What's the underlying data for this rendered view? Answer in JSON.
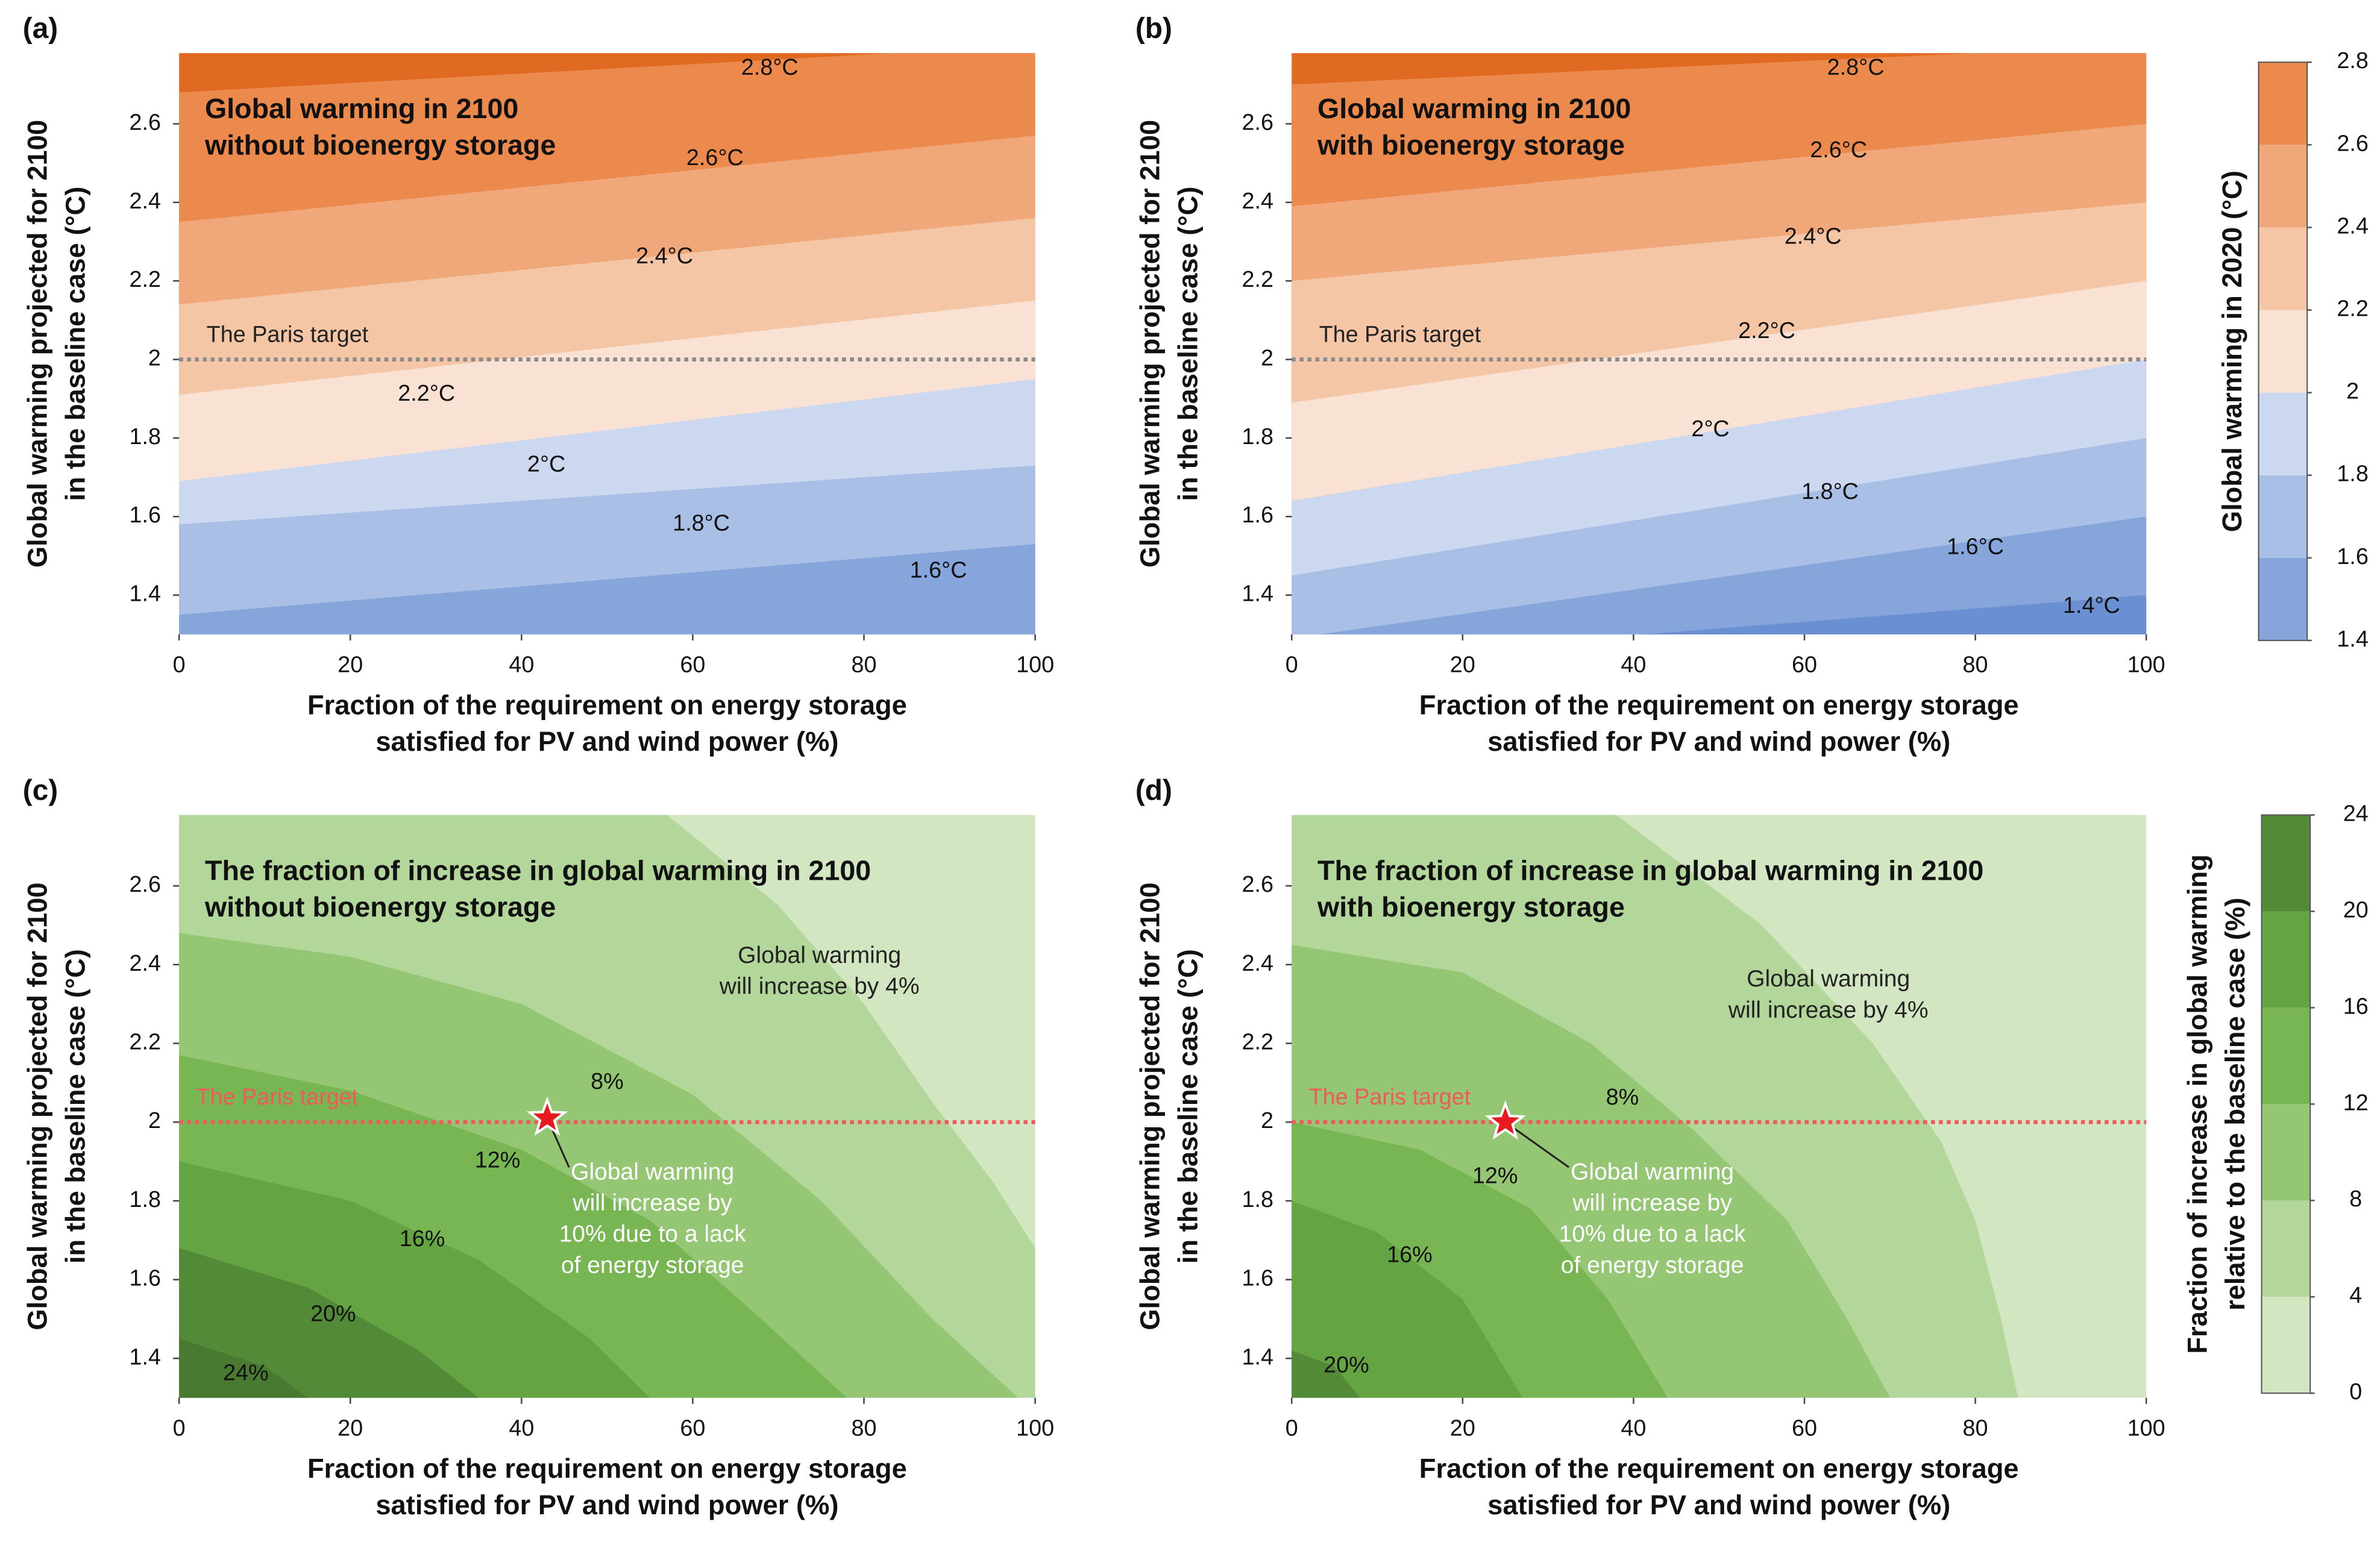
{
  "chart_data": [
    {
      "type": "contour",
      "panel": "(a)",
      "title": [
        "Global warming in 2100",
        "without bioenergy storage"
      ],
      "x_label": [
        "Fraction of the requirement on energy storage",
        "satisfied for PV and wind power (%)"
      ],
      "y_label": [
        "Global warming projected for 2100",
        "in the baseline case (°C)"
      ],
      "xlim": [
        0,
        100
      ],
      "xticks": [
        0,
        20,
        40,
        60,
        80,
        100
      ],
      "ylim": [
        1.3,
        2.78
      ],
      "yticks": [
        1.4,
        1.6,
        1.8,
        2,
        2.2,
        2.4,
        2.6
      ],
      "background": "#e06a22",
      "contours": [
        {
          "label": "2.8°C",
          "color": "#eb8a4c",
          "x": [
            0,
            100
          ],
          "y": [
            2.68,
            2.8
          ]
        },
        {
          "label": "2.6°C",
          "color": "#f0a77a",
          "x": [
            0,
            100
          ],
          "y": [
            2.35,
            2.57
          ]
        },
        {
          "label": "2.4°C",
          "color": "#f5c6a6",
          "x": [
            0,
            100
          ],
          "y": [
            2.14,
            2.36
          ]
        },
        {
          "label": "2.2°C",
          "color": "#f9e2d3",
          "x": [
            0,
            100
          ],
          "y": [
            1.91,
            2.15
          ]
        },
        {
          "label": "2°C",
          "color": "#cbd8ef",
          "x": [
            0,
            100
          ],
          "y": [
            1.69,
            1.95
          ]
        },
        {
          "label": "1.8°C",
          "color": "#a9bfe5",
          "x": [
            0,
            100
          ],
          "y": [
            1.58,
            1.73
          ]
        },
        {
          "label": "1.6°C",
          "color": "#86a5db",
          "x": [
            0,
            100
          ],
          "y": [
            1.35,
            1.53
          ]
        }
      ],
      "reference_line": {
        "label": "The Paris target",
        "value": 2,
        "color": "#8a8a8a"
      }
    },
    {
      "type": "contour",
      "panel": "(b)",
      "title": [
        "Global warming in 2100",
        "with bioenergy storage"
      ],
      "x_label": [
        "Fraction of the requirement on energy storage",
        "satisfied for PV and wind power (%)"
      ],
      "y_label": [
        "Global warming projected for 2100",
        "in the baseline case (°C)"
      ],
      "xlim": [
        0,
        100
      ],
      "xticks": [
        0,
        20,
        40,
        60,
        80,
        100
      ],
      "ylim": [
        1.3,
        2.78
      ],
      "yticks": [
        1.4,
        1.6,
        1.8,
        2,
        2.2,
        2.4,
        2.6
      ],
      "background": "#e06a22",
      "contours": [
        {
          "label": "2.8°C",
          "color": "#eb8a4c",
          "x": [
            0,
            100
          ],
          "y": [
            2.7,
            2.8
          ]
        },
        {
          "label": "2.6°C",
          "color": "#f0a77a",
          "x": [
            0,
            100
          ],
          "y": [
            2.39,
            2.6
          ]
        },
        {
          "label": "2.4°C",
          "color": "#f5c6a6",
          "x": [
            0,
            100
          ],
          "y": [
            2.2,
            2.4
          ]
        },
        {
          "label": "2.2°C",
          "color": "#f9e2d3",
          "x": [
            0,
            100
          ],
          "y": [
            1.89,
            2.2
          ]
        },
        {
          "label": "2°C",
          "color": "#cbd8ef",
          "x": [
            0,
            100
          ],
          "y": [
            1.64,
            2
          ]
        },
        {
          "label": "1.8°C",
          "color": "#a9bfe5",
          "x": [
            0,
            100
          ],
          "y": [
            1.45,
            1.8
          ]
        },
        {
          "label": "1.6°C",
          "color": "#86a5db",
          "x": [
            0,
            100
          ],
          "y": [
            1.29,
            1.6
          ]
        },
        {
          "label": "1.4°C",
          "color": "#6b8fd3",
          "x": [
            0,
            100
          ],
          "y": [
            1.23,
            1.4
          ]
        }
      ],
      "reference_line": {
        "label": "The Paris target",
        "value": 2,
        "color": "#8a8a8a"
      }
    },
    {
      "type": "contour",
      "panel": "(c)",
      "title": [
        "The fraction of increase in global warming in 2100",
        "without bioenergy storage"
      ],
      "x_label": [
        "Fraction of the requirement on energy storage",
        "satisfied for PV and wind power (%)"
      ],
      "y_label": [
        "Global warming projected for 2100",
        "in the baseline case (°C)"
      ],
      "xlim": [
        0,
        100
      ],
      "xticks": [
        0,
        20,
        40,
        60,
        80,
        100
      ],
      "ylim": [
        1.3,
        2.78
      ],
      "yticks": [
        1.4,
        1.6,
        1.8,
        2,
        2.2,
        2.4,
        2.6
      ],
      "background": "#d2e6c2",
      "contours": [
        {
          "color": "#b3d69a",
          "x": [
            57,
            70,
            80,
            88,
            95,
            100
          ],
          "y": [
            2.78,
            2.55,
            2.3,
            2.05,
            1.85,
            1.68
          ]
        },
        {
          "label": "8%",
          "color": "#94c673",
          "x": [
            0,
            20,
            40,
            60,
            75,
            88,
            98
          ],
          "y": [
            2.48,
            2.42,
            2.3,
            2.07,
            1.8,
            1.5,
            1.3
          ]
        },
        {
          "label": "12%",
          "color": "#78b553",
          "x": [
            0,
            20,
            40,
            55,
            68,
            78
          ],
          "y": [
            2.17,
            2.08,
            1.93,
            1.75,
            1.5,
            1.3
          ]
        },
        {
          "label": "16%",
          "color": "#64a443",
          "x": [
            0,
            20,
            35,
            48,
            55
          ],
          "y": [
            1.9,
            1.8,
            1.65,
            1.45,
            1.3
          ]
        },
        {
          "label": "20%",
          "color": "#538a38",
          "x": [
            0,
            15,
            28,
            35
          ],
          "y": [
            1.68,
            1.58,
            1.42,
            1.3
          ]
        },
        {
          "label": "24%",
          "color": "#4a7a32",
          "x": [
            0,
            10,
            15
          ],
          "y": [
            1.45,
            1.38,
            1.3
          ]
        }
      ],
      "reference_line": {
        "label": "The Paris target",
        "value": 2,
        "color": "#ef5a5a"
      },
      "marker": {
        "x": 43,
        "y": 2.01,
        "color": "#e8191f"
      },
      "annotations": [
        {
          "lines": [
            "Global warming",
            "will increase by 4%"
          ],
          "color": "#222222"
        },
        {
          "lines": [
            "Global warming",
            "will increase by",
            "10% due to a lack",
            "of energy storage"
          ],
          "color": "#ffffff"
        }
      ]
    },
    {
      "type": "contour",
      "panel": "(d)",
      "title": [
        "The fraction of increase in global warming in 2100",
        "with bioenergy storage"
      ],
      "x_label": [
        "Fraction of the requirement on energy storage",
        "satisfied for PV and wind power (%)"
      ],
      "y_label": [
        "Global warming projected for 2100",
        "in the baseline case (°C)"
      ],
      "xlim": [
        0,
        100
      ],
      "xticks": [
        0,
        20,
        40,
        60,
        80,
        100
      ],
      "ylim": [
        1.3,
        2.78
      ],
      "yticks": [
        1.4,
        1.6,
        1.8,
        2,
        2.2,
        2.4,
        2.6
      ],
      "background": "#d2e6c2",
      "contours": [
        {
          "color": "#b3d69a",
          "x": [
            38,
            55,
            68,
            76,
            80,
            83,
            85
          ],
          "y": [
            2.78,
            2.5,
            2.2,
            1.95,
            1.75,
            1.5,
            1.3
          ]
        },
        {
          "label": "8%",
          "color": "#94c673",
          "x": [
            0,
            20,
            35,
            47,
            58,
            65,
            70
          ],
          "y": [
            2.45,
            2.38,
            2.2,
            1.98,
            1.75,
            1.5,
            1.3
          ]
        },
        {
          "label": "12%",
          "color": "#78b553",
          "x": [
            0,
            15,
            28,
            37,
            44
          ],
          "y": [
            2,
            1.93,
            1.78,
            1.55,
            1.3
          ]
        },
        {
          "label": "16%",
          "color": "#64a443",
          "x": [
            0,
            10,
            20,
            27
          ],
          "y": [
            1.8,
            1.72,
            1.55,
            1.3
          ]
        },
        {
          "label": "20%",
          "color": "#538a38",
          "x": [
            0,
            5,
            8
          ],
          "y": [
            1.42,
            1.38,
            1.3
          ]
        }
      ],
      "reference_line": {
        "label": "The Paris target",
        "value": 2,
        "color": "#ef5a5a"
      },
      "marker": {
        "x": 25,
        "y": 2,
        "color": "#e8191f"
      },
      "annotations": [
        {
          "lines": [
            "Global warming",
            "will increase by 4%"
          ],
          "color": "#222222"
        },
        {
          "lines": [
            "Global warming",
            "will increase by",
            "10% due to a lack",
            "of energy storage"
          ],
          "color": "#ffffff"
        }
      ]
    }
  ],
  "colorbars": [
    {
      "label": [
        "Global warming in 2020 (°C)"
      ],
      "ticks": [
        1.4,
        1.6,
        1.8,
        2,
        2.2,
        2.4,
        2.6,
        2.8
      ],
      "colors": [
        "#86a5db",
        "#a9bfe5",
        "#cbd8ef",
        "#f9e2d3",
        "#f5c6a6",
        "#f0a77a",
        "#eb8a4c"
      ]
    },
    {
      "label": [
        "Fraction of increase in global warming",
        "relative to the baseline case (%)"
      ],
      "ticks": [
        0,
        4,
        8,
        12,
        16,
        20,
        24
      ],
      "colors": [
        "#d2e6c2",
        "#b3d69a",
        "#94c673",
        "#78b553",
        "#64a443",
        "#538a38"
      ]
    }
  ]
}
